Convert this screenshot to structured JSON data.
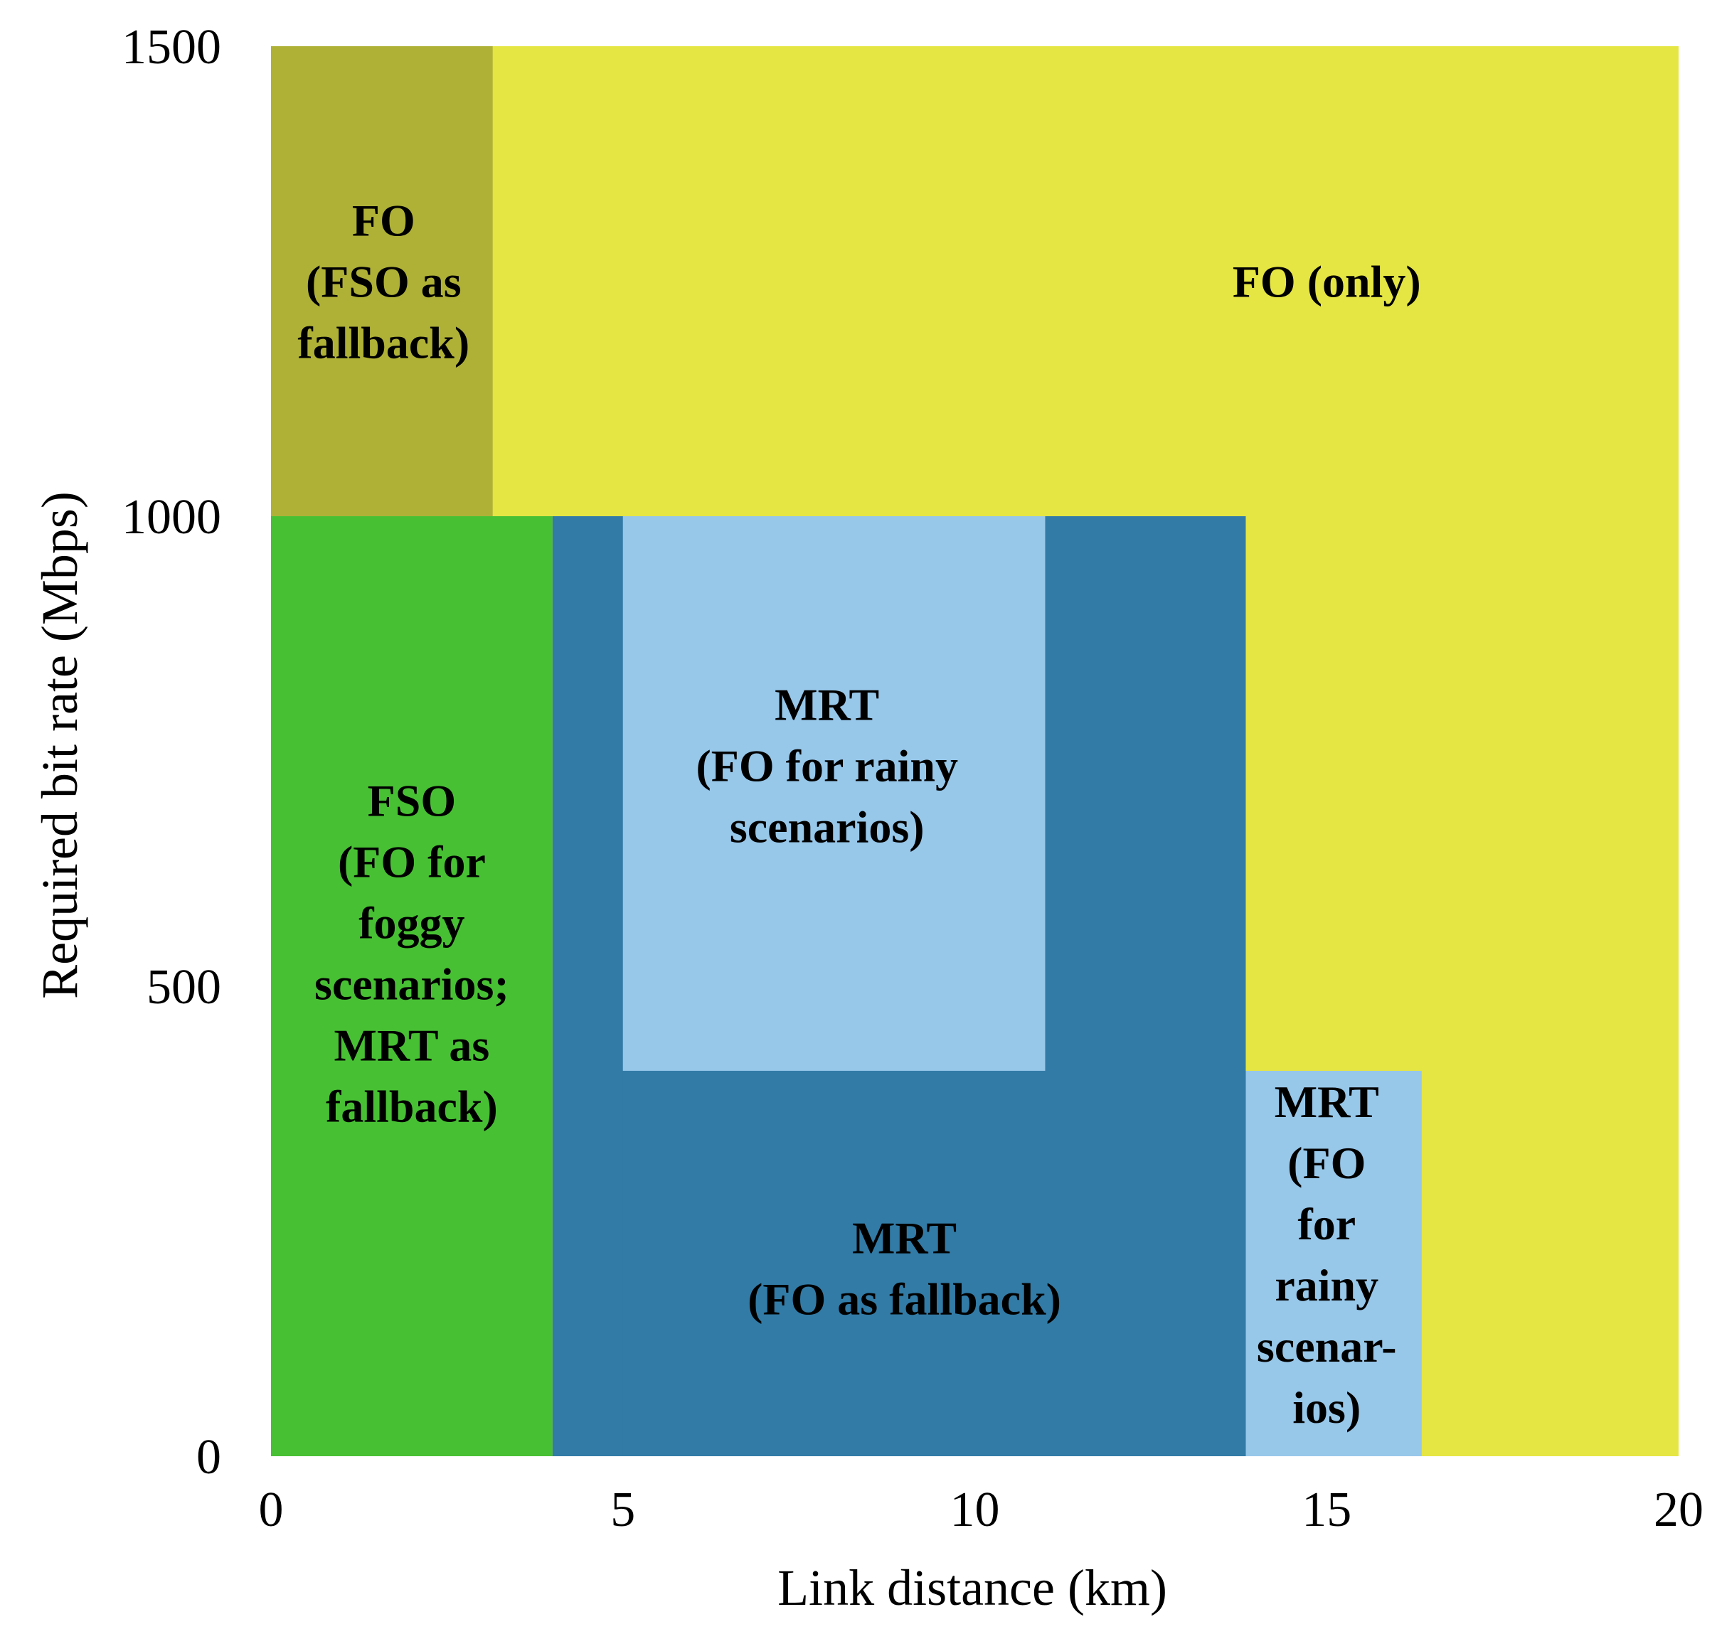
{
  "chart_data": {
    "type": "region-map",
    "title": "",
    "xlabel": "Link distance (km)",
    "ylabel": "Required bit rate (Mbps)",
    "xlim": [
      0,
      20
    ],
    "ylim": [
      0,
      1500
    ],
    "xticks": [
      0,
      5,
      10,
      15,
      20
    ],
    "yticks": [
      0,
      500,
      1000,
      1500
    ],
    "grid": false,
    "regions": [
      {
        "name": "fo-only",
        "x0": 0,
        "x1": 20,
        "y0": 0,
        "y1": 1500,
        "color": "#e5e544",
        "label": [
          "FO (only)"
        ],
        "label_at": [
          15,
          1250
        ]
      },
      {
        "name": "fo-fso-fallback",
        "x0": 0,
        "x1": 3.15,
        "y0": 1000,
        "y1": 1500,
        "color": "#afb137",
        "label": [
          "FO",
          "(FSO as",
          "fallback)"
        ],
        "label_at": [
          1.6,
          1250
        ]
      },
      {
        "name": "fso-region",
        "x0": 0,
        "x1": 4.0,
        "y0": 0,
        "y1": 1000,
        "color": "#48c034",
        "label": [
          "FSO",
          "(FO for",
          "foggy",
          "scenarios;",
          "MRT as",
          "fallback)"
        ],
        "label_at": [
          2.0,
          535
        ]
      },
      {
        "name": "mrt-fo-fallback",
        "x0": 4.0,
        "x1": 13.85,
        "y0": 0,
        "y1": 1000,
        "color": "#327ba6",
        "label": [],
        "label_at": [
          0,
          0
        ]
      },
      {
        "name": "mrt-rainy-upper",
        "x0": 5.0,
        "x1": 11.0,
        "y0": 410,
        "y1": 1000,
        "color": "#97c7e9",
        "label": [
          "MRT",
          "(FO for rainy",
          "scenarios)"
        ],
        "label_at": [
          7.9,
          735
        ]
      },
      {
        "name": "mrt-rainy-lower",
        "x0": 13.85,
        "x1": 16.35,
        "y0": 0,
        "y1": 410,
        "color": "#97c7e9",
        "label": [
          "MRT",
          "(FO",
          "for",
          "rainy",
          "scenar-",
          "ios)"
        ],
        "label_at": [
          15.0,
          215
        ]
      },
      {
        "name": "mrt-label-holder",
        "x0": 5.0,
        "x1": 13.85,
        "y0": 0,
        "y1": 410,
        "color": "#327ba6",
        "label": [
          "MRT",
          "(FO as fallback)"
        ],
        "label_at": [
          9.0,
          200
        ]
      }
    ]
  }
}
